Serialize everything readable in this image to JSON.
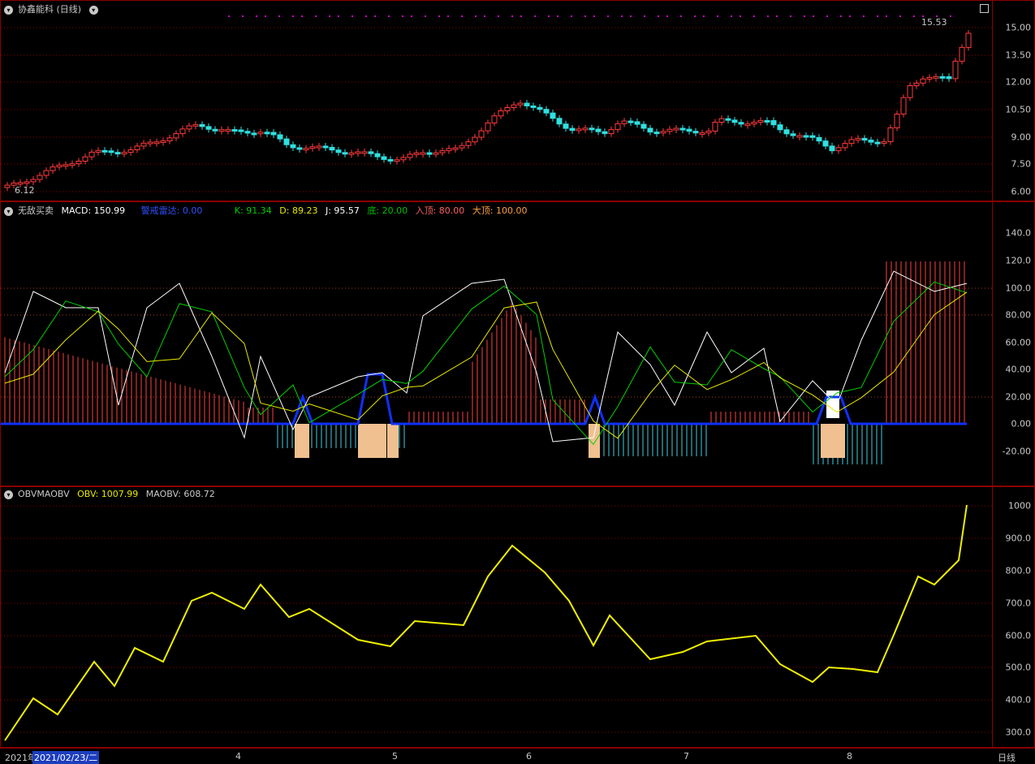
{
  "panel1": {
    "title": "协鑫能科 (日线)",
    "menu_icon": "chevron-down-icon",
    "price_ticks": [
      "15.00",
      "13.50",
      "12.00",
      "10.50",
      "9.00",
      "7.50",
      "6.00"
    ],
    "high_label": "15.53",
    "low_label": "6.12"
  },
  "panel2": {
    "indicator": "无敌买卖",
    "macd": "MACD: 150.99",
    "warn": "警戒雷达: 0.00",
    "k": "K: 91.34",
    "d": "D: 89.23",
    "j": "J: 95.57",
    "bottom": "底: 20.00",
    "top": "入顶: 80.00",
    "bigtop": "大顶: 100.00",
    "ticks": [
      "140.0",
      "120.0",
      "100.0",
      "80.00",
      "60.00",
      "40.00",
      "20.00",
      "0.00",
      "-20.00"
    ],
    "colors": {
      "macd": "#ffffff",
      "warn": "#3050ff",
      "k": "#00d000",
      "d": "#e8e800",
      "j": "#ffffff",
      "bottom": "#00c000",
      "top": "#ff6060",
      "bigtop": "#ff9f40"
    }
  },
  "panel3": {
    "indicator": "OBVMAOBV",
    "obv": "OBV: 1007.99",
    "maobv": "MAOBV: 608.72",
    "ticks": [
      "1000",
      "900.0",
      "800.0",
      "700.0",
      "600.0",
      "500.0",
      "400.0",
      "300.0"
    ]
  },
  "bottom_bar": {
    "year": "2021年",
    "selected_date": "2021/02/23/二",
    "months": [
      "4",
      "5",
      "6",
      "7",
      "8"
    ],
    "period": "日线"
  }
}
